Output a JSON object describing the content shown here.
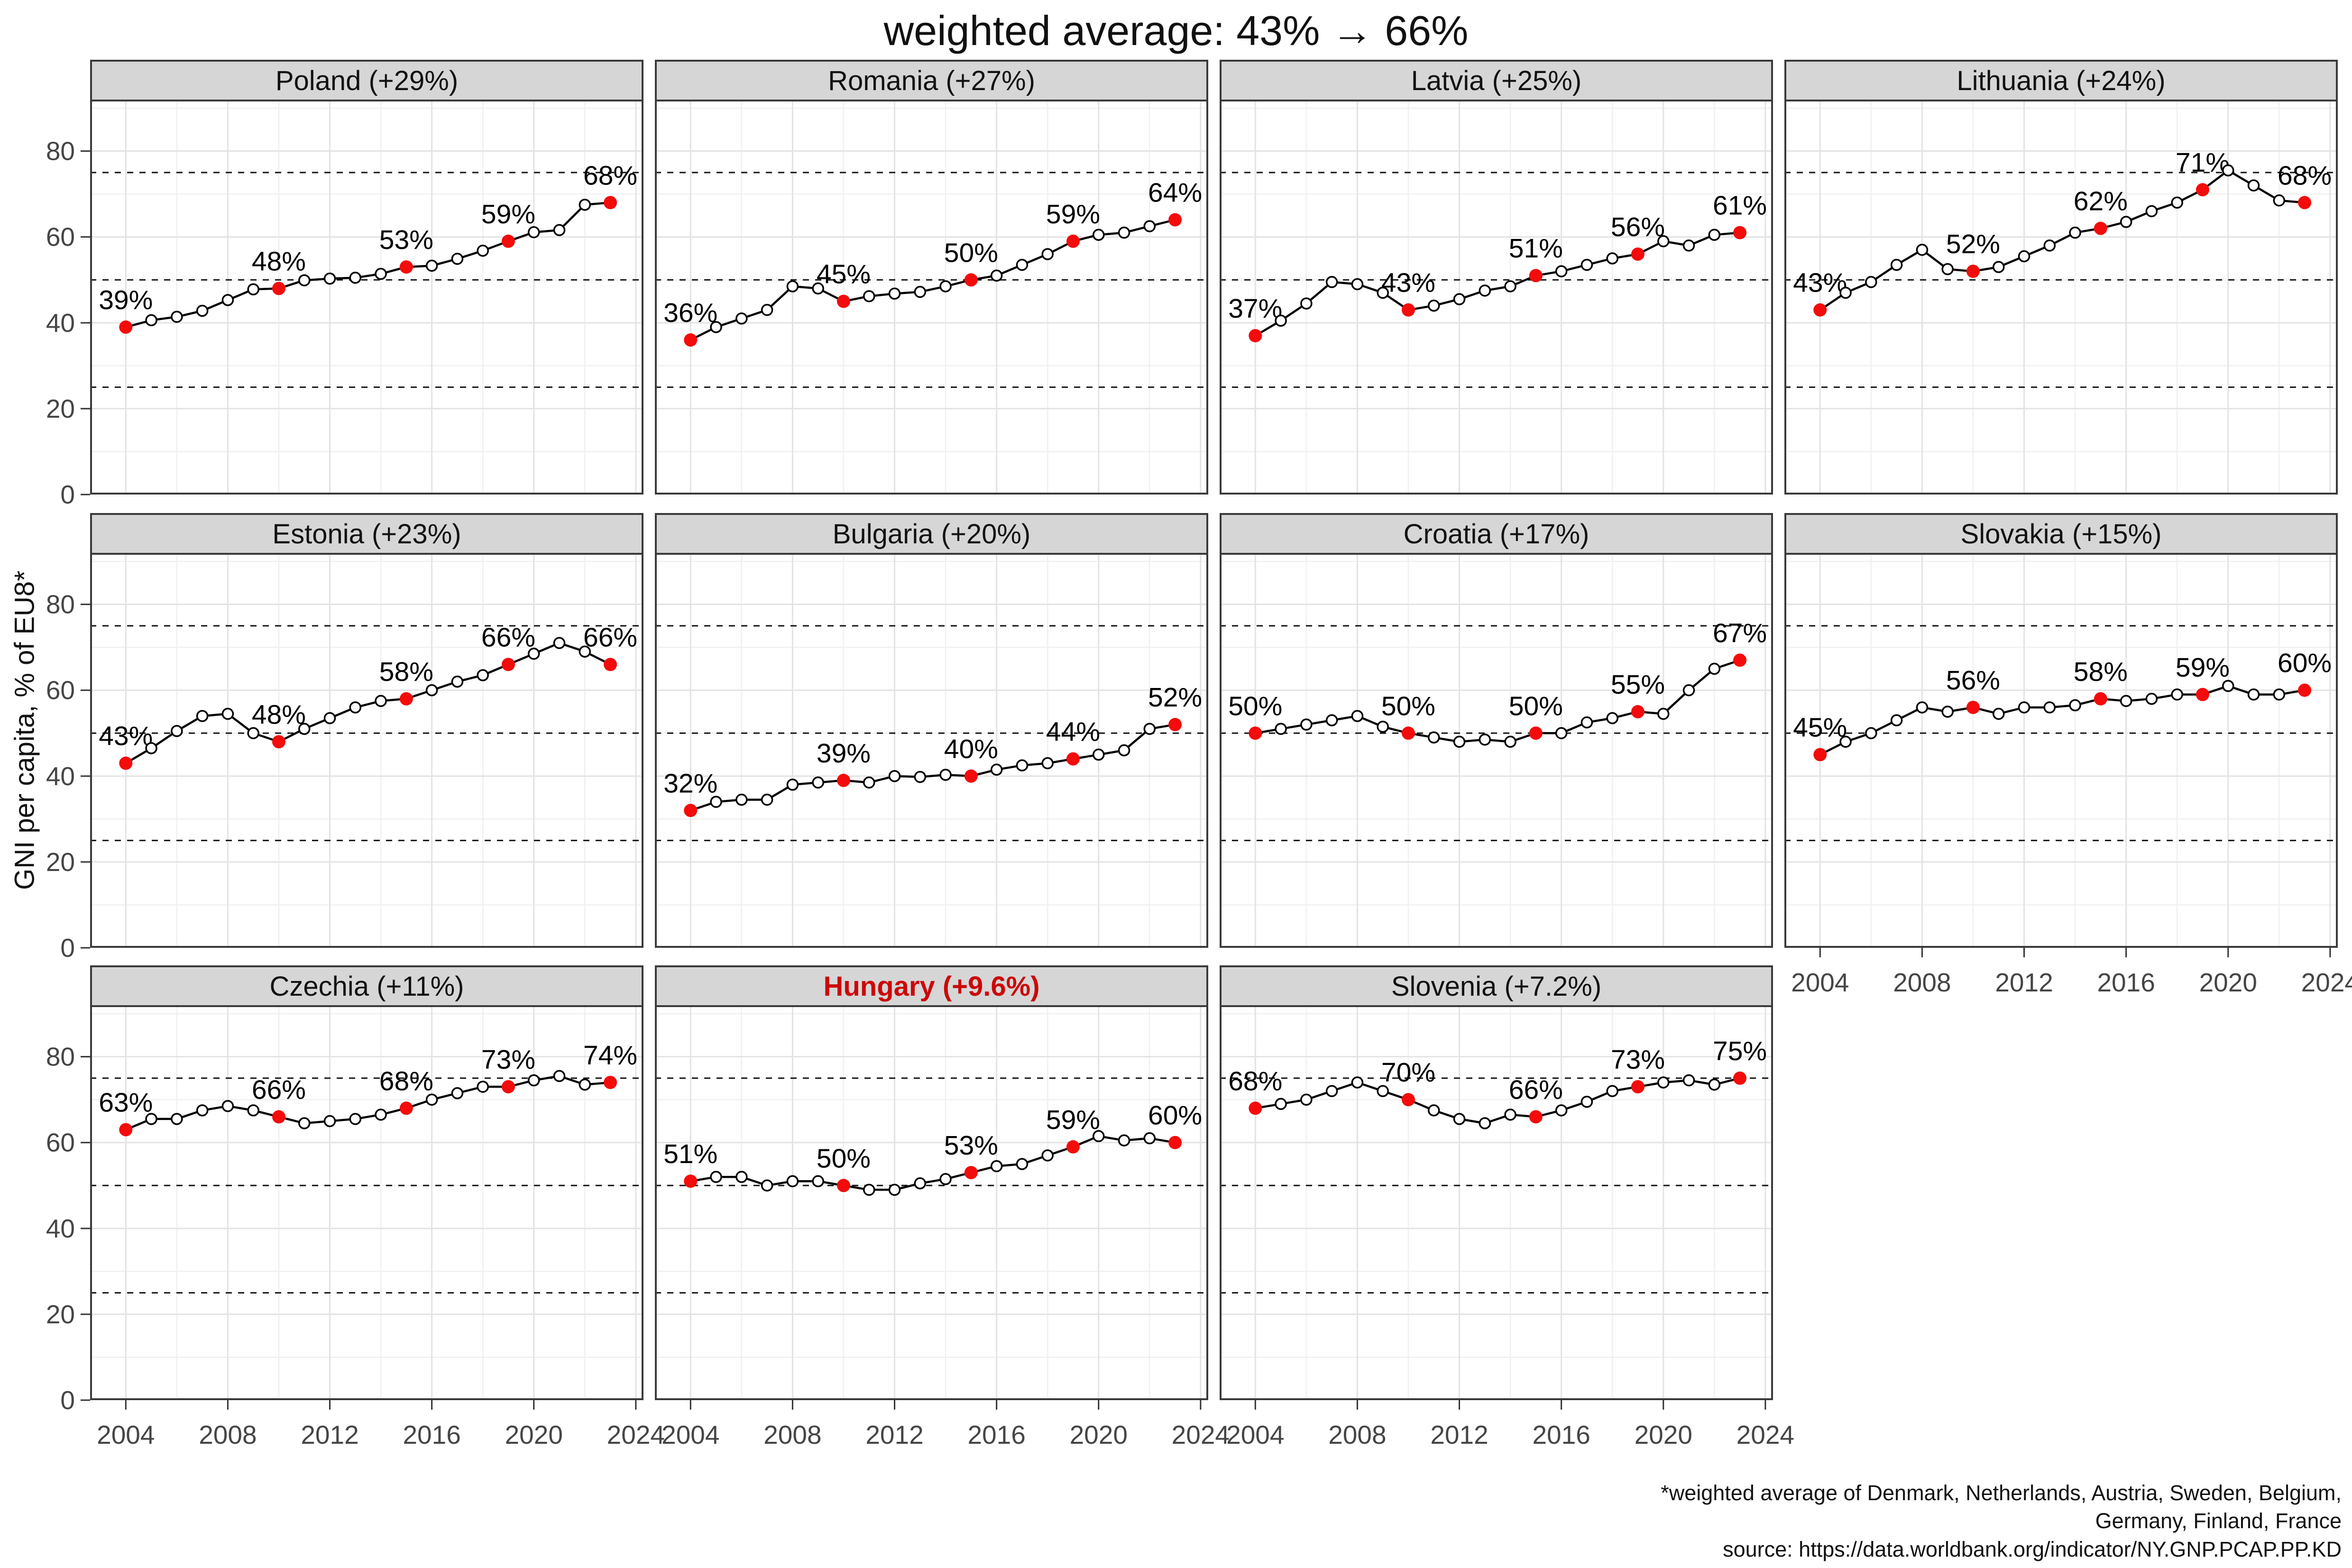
{
  "title": "weighted average: 43% → 66%",
  "y_axis_title": "GNI per capita, % of EU8*",
  "footnote_lines": [
    "*weighted average of Denmark, Netherlands, Austria, Sweden, Belgium,",
    "Germany, Finland, France",
    "source: https://data.worldbank.org/indicator/NY.GNP.PCAP.PP.KD"
  ],
  "colors": {
    "red_point": "#f40b0b",
    "hungary_title": "#cc0707",
    "strip_bg": "#d6d6d6",
    "panel_border": "#3a3a3a",
    "grid_major": "#e3e3e3",
    "grid_minor": "#f0f0f0",
    "ref_line": "#141414",
    "series_line": "#000000",
    "tick_label": "#454545",
    "text": "#111111"
  },
  "chart_data": {
    "type": "line",
    "title": "weighted average: 43% → 66%",
    "ylabel": "GNI per capita, % of EU8*",
    "years": [
      2004,
      2005,
      2006,
      2007,
      2008,
      2009,
      2010,
      2011,
      2012,
      2013,
      2014,
      2015,
      2016,
      2017,
      2018,
      2019,
      2020,
      2021,
      2022,
      2023
    ],
    "labeled_years": [
      2004,
      2010,
      2015,
      2019,
      2023
    ],
    "x_ticks": [
      2004,
      2008,
      2012,
      2016,
      2020,
      2024
    ],
    "x_minor": [
      2006,
      2010,
      2014,
      2018,
      2022
    ],
    "y_ticks": [
      0,
      20,
      40,
      60,
      80
    ],
    "y_minor": [
      10,
      30,
      50,
      70,
      90
    ],
    "ref_lines": [
      25,
      50,
      75
    ],
    "xlim": [
      2002.6,
      2024.3
    ],
    "ylim": [
      0,
      92
    ],
    "grid": true,
    "legend": "none",
    "facets": [
      {
        "title": "Poland (+29%)",
        "highlight": false,
        "show_y_axis": true,
        "show_x_axis": false,
        "values": [
          39,
          40.6,
          41.4,
          42.8,
          45.3,
          47.8,
          48,
          49.9,
          50.3,
          50.5,
          51.4,
          53,
          53.3,
          54.9,
          56.8,
          59,
          61.1,
          61.6,
          67.5,
          68
        ],
        "labels": [
          "39%",
          "48%",
          "53%",
          "59%",
          "68%"
        ]
      },
      {
        "title": "Romania (+27%)",
        "highlight": false,
        "show_y_axis": false,
        "show_x_axis": false,
        "values": [
          36,
          39,
          41,
          43,
          48.5,
          48,
          45,
          46.2,
          46.8,
          47.2,
          48.5,
          50,
          51,
          53.5,
          56,
          59,
          60.5,
          61,
          62.5,
          64
        ],
        "labels": [
          "36%",
          "45%",
          "50%",
          "59%",
          "64%"
        ]
      },
      {
        "title": "Latvia (+25%)",
        "highlight": false,
        "show_y_axis": false,
        "show_x_axis": false,
        "values": [
          37,
          40.5,
          44.5,
          49.5,
          49,
          47,
          43,
          44,
          45.5,
          47.5,
          48.5,
          51,
          52,
          53.5,
          55,
          56,
          59,
          58,
          60.5,
          61
        ],
        "labels": [
          "37%",
          "43%",
          "51%",
          "56%",
          "61%"
        ]
      },
      {
        "title": "Lithuania (+24%)",
        "highlight": false,
        "show_y_axis": false,
        "show_x_axis": false,
        "values": [
          43,
          47,
          49.5,
          53.5,
          57,
          52.5,
          52,
          53,
          55.5,
          58,
          61,
          62,
          63.5,
          66,
          68,
          71,
          75.5,
          72,
          68.5,
          68
        ],
        "labels": [
          "43%",
          "52%",
          "62%",
          "71%",
          "68%"
        ]
      },
      {
        "title": "Estonia (+23%)",
        "highlight": false,
        "show_y_axis": true,
        "show_x_axis": false,
        "values": [
          43,
          46.5,
          50.5,
          54,
          54.5,
          50,
          48,
          51,
          53.5,
          56,
          57.5,
          58,
          60,
          62,
          63.5,
          66,
          68.5,
          71,
          69,
          66
        ],
        "labels": [
          "43%",
          "48%",
          "58%",
          "66%",
          "66%"
        ]
      },
      {
        "title": "Bulgaria (+20%)",
        "highlight": false,
        "show_y_axis": false,
        "show_x_axis": false,
        "values": [
          32,
          34,
          34.5,
          34.5,
          38,
          38.5,
          39,
          38.5,
          40,
          39.8,
          40.3,
          40,
          41.5,
          42.5,
          43,
          44,
          45,
          46,
          51,
          52
        ],
        "labels": [
          "32%",
          "39%",
          "40%",
          "44%",
          "52%"
        ]
      },
      {
        "title": "Croatia (+17%)",
        "highlight": false,
        "show_y_axis": false,
        "show_x_axis": false,
        "values": [
          50,
          51,
          52,
          53,
          54,
          51.5,
          50,
          49,
          48,
          48.5,
          48,
          50,
          50,
          52.5,
          53.5,
          55,
          54.5,
          60,
          65,
          67
        ],
        "labels": [
          "50%",
          "50%",
          "50%",
          "55%",
          "67%"
        ]
      },
      {
        "title": "Slovakia (+15%)",
        "highlight": false,
        "show_y_axis": false,
        "show_x_axis": true,
        "values": [
          45,
          48,
          50,
          53,
          56,
          55,
          56,
          54.5,
          56,
          56,
          56.5,
          58,
          57.5,
          58,
          59,
          59,
          61,
          59,
          59,
          60
        ],
        "labels": [
          "45%",
          "56%",
          "58%",
          "59%",
          "60%"
        ]
      },
      {
        "title": "Czechia (+11%)",
        "highlight": false,
        "show_y_axis": true,
        "show_x_axis": true,
        "values": [
          63,
          65.5,
          65.5,
          67.5,
          68.5,
          67.5,
          66,
          64.5,
          65,
          65.5,
          66.5,
          68,
          70,
          71.5,
          73,
          73,
          74.5,
          75.5,
          73.5,
          74
        ],
        "labels": [
          "63%",
          "66%",
          "68%",
          "73%",
          "74%"
        ]
      },
      {
        "title": "Hungary (+9.6%)",
        "highlight": true,
        "show_y_axis": false,
        "show_x_axis": true,
        "values": [
          51,
          52,
          52,
          50,
          51,
          51,
          50,
          49,
          49,
          50.5,
          51.5,
          53,
          54.5,
          55,
          57,
          59,
          61.5,
          60.5,
          61,
          60
        ],
        "labels": [
          "51%",
          "50%",
          "53%",
          "59%",
          "60%"
        ]
      },
      {
        "title": "Slovenia (+7.2%)",
        "highlight": false,
        "show_y_axis": false,
        "show_x_axis": true,
        "values": [
          68,
          69,
          70,
          72,
          74,
          72,
          70,
          67.5,
          65.5,
          64.5,
          66.5,
          66,
          67.5,
          69.5,
          72,
          73,
          74,
          74.5,
          73.5,
          75
        ],
        "labels": [
          "68%",
          "70%",
          "66%",
          "73%",
          "75%"
        ]
      }
    ]
  }
}
